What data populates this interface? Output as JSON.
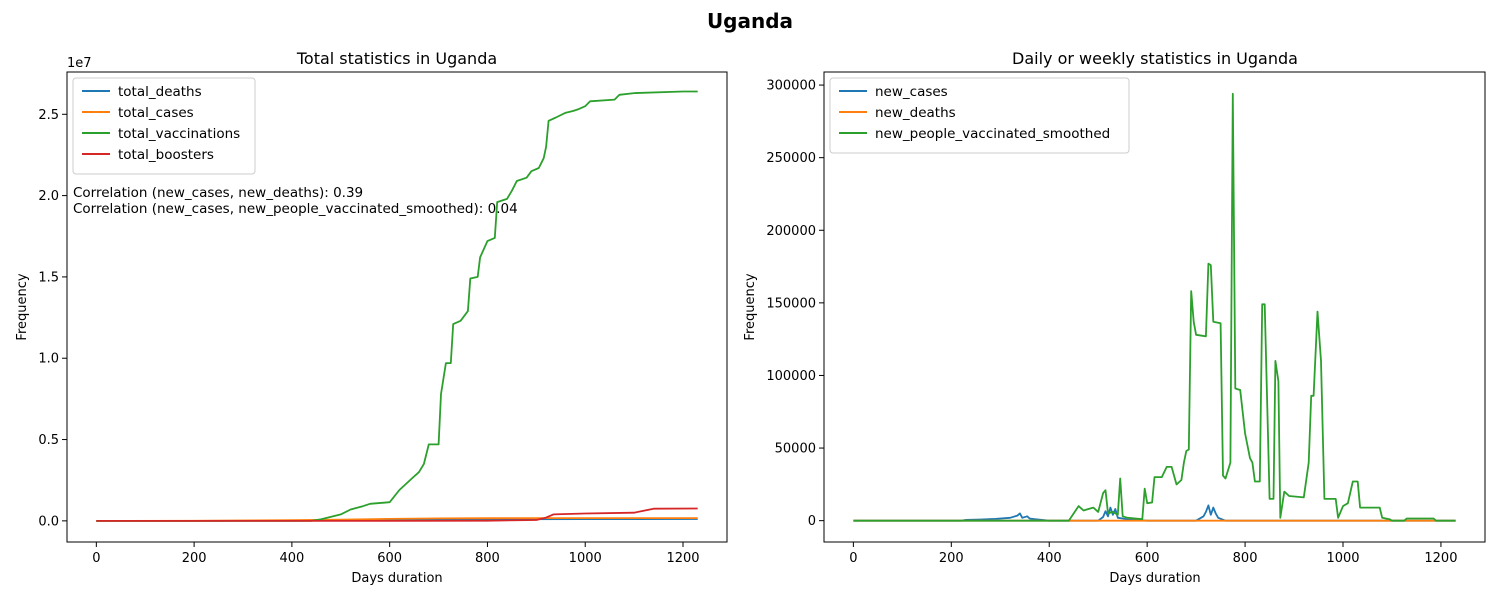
{
  "figure": {
    "title": "Uganda"
  },
  "chart_data": [
    {
      "type": "line",
      "title": "Total statistics in Uganda",
      "xlabel": "Days duration",
      "ylabel": "Frequency",
      "y_offset_label": "1e7",
      "y_scale": 10000000,
      "xlim": [
        -60,
        1290
      ],
      "ylim": [
        -1300000,
        27600000
      ],
      "xticks": [
        0,
        200,
        400,
        600,
        800,
        1000,
        1200
      ],
      "yticks": [
        0,
        5000000,
        10000000,
        15000000,
        20000000,
        25000000
      ],
      "ytick_labels": [
        "0.0",
        "0.5",
        "1.0",
        "1.5",
        "2.0",
        "2.5"
      ],
      "grid": false,
      "legend_position": "upper-left",
      "annotations": [
        "Correlation (new_cases, new_deaths): 0.39",
        "Correlation (new_cases, new_people_vaccinated_smoothed): 0.04"
      ],
      "series": [
        {
          "name": "total_deaths",
          "color": "#1f77b4",
          "points": [
            [
              0,
              0
            ],
            [
              200,
              0
            ],
            [
              400,
              10000
            ],
            [
              500,
              30000
            ],
            [
              600,
              60000
            ],
            [
              800,
              100000
            ],
            [
              1000,
              110000
            ],
            [
              1230,
              112000
            ]
          ]
        },
        {
          "name": "total_cases",
          "color": "#ff7f0e",
          "points": [
            [
              0,
              0
            ],
            [
              200,
              3000
            ],
            [
              400,
              40000
            ],
            [
              500,
              80000
            ],
            [
              600,
              120000
            ],
            [
              700,
              150000
            ],
            [
              800,
              165000
            ],
            [
              900,
              168000
            ],
            [
              1000,
              169000
            ],
            [
              1230,
              171000
            ]
          ]
        },
        {
          "name": "total_vaccinations",
          "color": "#2ca02c",
          "points": [
            [
              0,
              0
            ],
            [
              440,
              0
            ],
            [
              460,
              100000
            ],
            [
              500,
              400000
            ],
            [
              520,
              700000
            ],
            [
              545,
              900000
            ],
            [
              560,
              1050000
            ],
            [
              600,
              1150000
            ],
            [
              620,
              1900000
            ],
            [
              645,
              2600000
            ],
            [
              660,
              3000000
            ],
            [
              670,
              3500000
            ],
            [
              680,
              4700000
            ],
            [
              700,
              4700000
            ],
            [
              705,
              7800000
            ],
            [
              715,
              9700000
            ],
            [
              725,
              9700000
            ],
            [
              730,
              12100000
            ],
            [
              745,
              12300000
            ],
            [
              760,
              12900000
            ],
            [
              765,
              14900000
            ],
            [
              780,
              15000000
            ],
            [
              785,
              16200000
            ],
            [
              800,
              17200000
            ],
            [
              815,
              17400000
            ],
            [
              820,
              19600000
            ],
            [
              840,
              19800000
            ],
            [
              850,
              20300000
            ],
            [
              860,
              20900000
            ],
            [
              880,
              21100000
            ],
            [
              890,
              21500000
            ],
            [
              905,
              21700000
            ],
            [
              915,
              22300000
            ],
            [
              920,
              23000000
            ],
            [
              925,
              24600000
            ],
            [
              940,
              24800000
            ],
            [
              960,
              25100000
            ],
            [
              975,
              25200000
            ],
            [
              985,
              25300000
            ],
            [
              1000,
              25500000
            ],
            [
              1010,
              25800000
            ],
            [
              1060,
              25900000
            ],
            [
              1070,
              26200000
            ],
            [
              1100,
              26300000
            ],
            [
              1200,
              26400000
            ],
            [
              1230,
              26400000
            ]
          ]
        },
        {
          "name": "total_boosters",
          "color": "#d62728",
          "points": [
            [
              0,
              0
            ],
            [
              600,
              0
            ],
            [
              800,
              10000
            ],
            [
              900,
              50000
            ],
            [
              920,
              200000
            ],
            [
              935,
              400000
            ],
            [
              1000,
              450000
            ],
            [
              1100,
              500000
            ],
            [
              1140,
              750000
            ],
            [
              1230,
              760000
            ]
          ]
        }
      ]
    },
    {
      "type": "line",
      "title": "Daily or weekly statistics in Uganda",
      "xlabel": "Days duration",
      "ylabel": "Frequency",
      "xlim": [
        -60,
        1290
      ],
      "ylim": [
        -14700,
        309000
      ],
      "xticks": [
        0,
        200,
        400,
        600,
        800,
        1000,
        1200
      ],
      "yticks": [
        0,
        50000,
        100000,
        150000,
        200000,
        250000,
        300000
      ],
      "ytick_labels": [
        "0",
        "50000",
        "100000",
        "150000",
        "200000",
        "250000",
        "300000"
      ],
      "grid": false,
      "legend_position": "upper-left",
      "series": [
        {
          "name": "new_cases",
          "color": "#1f77b4",
          "points": [
            [
              0,
              0
            ],
            [
              220,
              0
            ],
            [
              230,
              500
            ],
            [
              260,
              800
            ],
            [
              290,
              1200
            ],
            [
              320,
              2000
            ],
            [
              335,
              3500
            ],
            [
              340,
              5000
            ],
            [
              345,
              2000
            ],
            [
              355,
              3000
            ],
            [
              360,
              1500
            ],
            [
              370,
              1000
            ],
            [
              400,
              0
            ],
            [
              500,
              0
            ],
            [
              510,
              2500
            ],
            [
              515,
              6500
            ],
            [
              520,
              3000
            ],
            [
              525,
              9000
            ],
            [
              530,
              4000
            ],
            [
              535,
              8000
            ],
            [
              540,
              2000
            ],
            [
              550,
              1500
            ],
            [
              560,
              800
            ],
            [
              600,
              0
            ],
            [
              700,
              0
            ],
            [
              715,
              3000
            ],
            [
              720,
              6000
            ],
            [
              725,
              10500
            ],
            [
              730,
              4000
            ],
            [
              735,
              9000
            ],
            [
              740,
              5000
            ],
            [
              745,
              2000
            ],
            [
              760,
              0
            ],
            [
              1230,
              0
            ]
          ]
        },
        {
          "name": "new_deaths",
          "color": "#ff7f0e",
          "points": [
            [
              0,
              0
            ],
            [
              1230,
              0
            ]
          ]
        },
        {
          "name": "new_people_vaccinated_smoothed",
          "color": "#2ca02c",
          "points": [
            [
              0,
              0
            ],
            [
              440,
              0
            ],
            [
              450,
              5000
            ],
            [
              460,
              10000
            ],
            [
              470,
              7000
            ],
            [
              480,
              8000
            ],
            [
              490,
              9000
            ],
            [
              500,
              6000
            ],
            [
              510,
              19000
            ],
            [
              515,
              21000
            ],
            [
              520,
              5000
            ],
            [
              530,
              6000
            ],
            [
              540,
              4000
            ],
            [
              545,
              29000
            ],
            [
              550,
              3000
            ],
            [
              560,
              2000
            ],
            [
              590,
              1000
            ],
            [
              595,
              22000
            ],
            [
              600,
              12000
            ],
            [
              610,
              12500
            ],
            [
              615,
              30000
            ],
            [
              630,
              30000
            ],
            [
              640,
              37000
            ],
            [
              650,
              37000
            ],
            [
              660,
              25000
            ],
            [
              670,
              28000
            ],
            [
              675,
              40000
            ],
            [
              680,
              48000
            ],
            [
              685,
              49000
            ],
            [
              690,
              158000
            ],
            [
              695,
              137000
            ],
            [
              700,
              128000
            ],
            [
              720,
              127000
            ],
            [
              725,
              177000
            ],
            [
              730,
              176000
            ],
            [
              735,
              137000
            ],
            [
              750,
              136000
            ],
            [
              755,
              31000
            ],
            [
              760,
              29000
            ],
            [
              770,
              40000
            ],
            [
              775,
              294000
            ],
            [
              780,
              91000
            ],
            [
              790,
              90000
            ],
            [
              800,
              60000
            ],
            [
              810,
              43000
            ],
            [
              815,
              40000
            ],
            [
              820,
              27000
            ],
            [
              830,
              27000
            ],
            [
              835,
              149000
            ],
            [
              840,
              149000
            ],
            [
              850,
              15000
            ],
            [
              858,
              15000
            ],
            [
              862,
              110000
            ],
            [
              868,
              96000
            ],
            [
              872,
              2000
            ],
            [
              880,
              20000
            ],
            [
              890,
              17000
            ],
            [
              920,
              16000
            ],
            [
              930,
              40000
            ],
            [
              935,
              86000
            ],
            [
              940,
              86000
            ],
            [
              948,
              144000
            ],
            [
              955,
              110000
            ],
            [
              962,
              15000
            ],
            [
              985,
              15000
            ],
            [
              990,
              2000
            ],
            [
              1000,
              10000
            ],
            [
              1010,
              12000
            ],
            [
              1020,
              27000
            ],
            [
              1030,
              27000
            ],
            [
              1035,
              9000
            ],
            [
              1075,
              9000
            ],
            [
              1080,
              2000
            ],
            [
              1095,
              1000
            ],
            [
              1100,
              0
            ],
            [
              1125,
              0
            ],
            [
              1130,
              1500
            ],
            [
              1185,
              1500
            ],
            [
              1190,
              0
            ],
            [
              1230,
              0
            ]
          ]
        }
      ]
    }
  ]
}
